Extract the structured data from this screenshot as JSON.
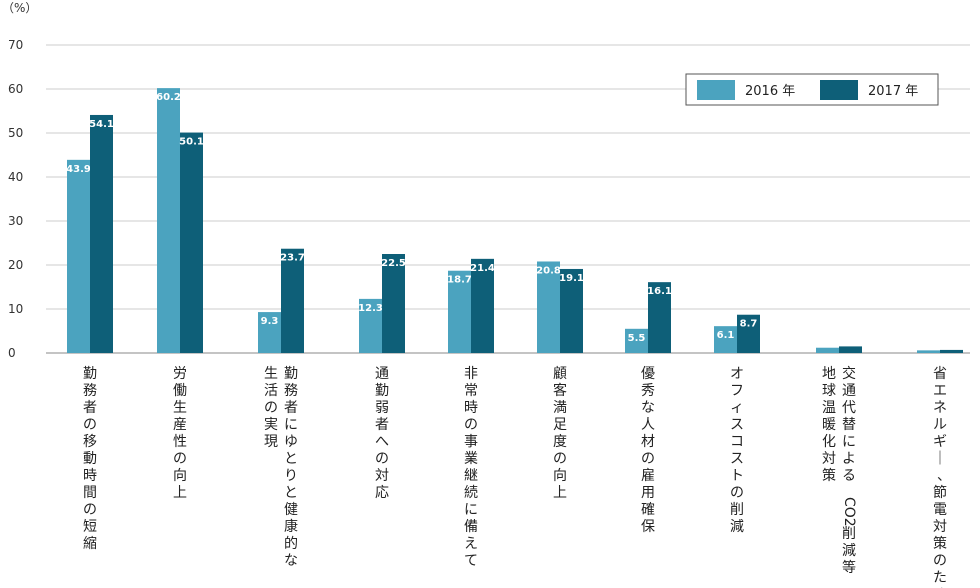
{
  "chart_data": {
    "type": "bar",
    "unit_label": "（%）",
    "y_ticks": [
      "0",
      "10",
      "20",
      "30",
      "40",
      "50",
      "60",
      "70"
    ],
    "ylim": [
      0,
      70
    ],
    "grid": true,
    "legend_position": "top-right",
    "categories": [
      [
        "勤務者の移動時間の短縮"
      ],
      [
        "労働生産性の向上"
      ],
      [
        "勤務者にゆとりと健康的な",
        "生活の実現"
      ],
      [
        "通勤弱者への対応"
      ],
      [
        "非常時の事業継続に備えて"
      ],
      [
        "顧客満足度の向上"
      ],
      [
        "優秀な人材の雇用確保"
      ],
      [
        "オフィスコストの削減"
      ],
      [
        "交通代替による CO2 削減等",
        "地球温暖化対策"
      ],
      [
        "省エネルギー、節電対策のため"
      ]
    ],
    "series": [
      {
        "name": "2016 年",
        "color": "#4ba3bf",
        "values": [
          43.9,
          60.2,
          9.3,
          12.3,
          18.7,
          20.8,
          5.5,
          6.1,
          1.2,
          0.6
        ],
        "labels": [
          "43.9",
          "60.2",
          "9.3",
          "12.3",
          "18.7",
          "20.8",
          "5.5",
          "6.1",
          "1.2",
          "0.6"
        ]
      },
      {
        "name": "2017 年",
        "color": "#0e5f78",
        "values": [
          54.1,
          50.1,
          23.7,
          22.5,
          21.4,
          19.1,
          16.1,
          8.7,
          1.5,
          0.7
        ],
        "labels": [
          "54.1",
          "50.1",
          "23.7",
          "22.5",
          "21.4",
          "19.1",
          "16.1",
          "8.7",
          "1.5",
          "0.7"
        ]
      }
    ]
  }
}
